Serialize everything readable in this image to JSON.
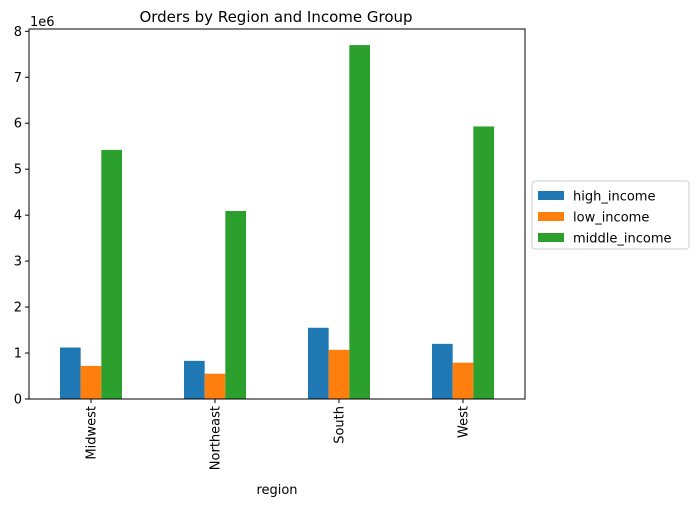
{
  "chart_data": {
    "type": "bar",
    "title": "Orders by Region and Income Group",
    "xlabel": "region",
    "ylabel": "",
    "y_offset_label": "1e6",
    "categories": [
      "Midwest",
      "Northeast",
      "South",
      "West"
    ],
    "yticks": [
      "0",
      "1",
      "2",
      "3",
      "4",
      "5",
      "6",
      "7",
      "8"
    ],
    "ylim": [
      0,
      8.05
    ],
    "grid": false,
    "legend_position": "center-right outside",
    "series": [
      {
        "name": "high_income",
        "color": "#1f77b4",
        "values": [
          1.12,
          0.83,
          1.55,
          1.2
        ]
      },
      {
        "name": "low_income",
        "color": "#ff7f0e",
        "values": [
          0.72,
          0.55,
          1.07,
          0.79
        ]
      },
      {
        "name": "middle_income",
        "color": "#2ca02c",
        "values": [
          5.42,
          4.09,
          7.7,
          5.93
        ]
      }
    ]
  }
}
